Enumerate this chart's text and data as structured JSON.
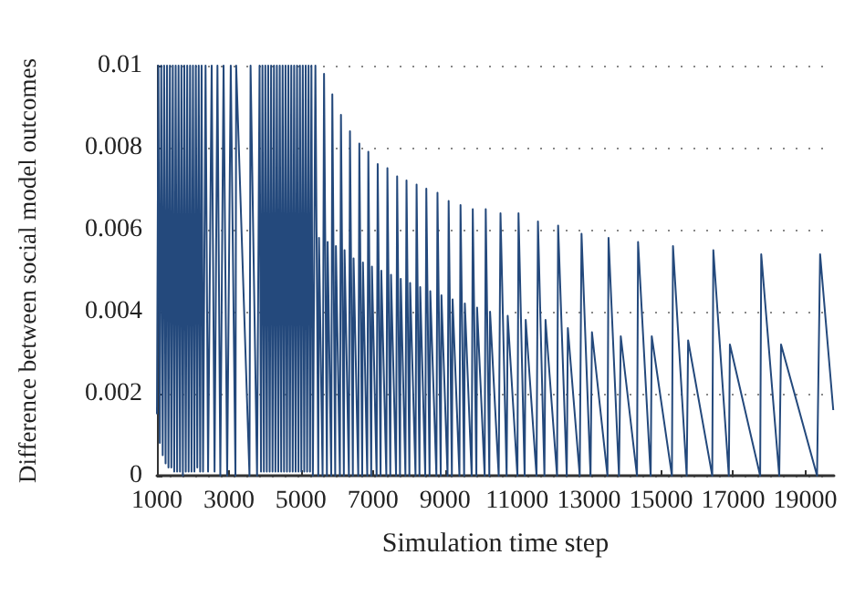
{
  "chart_data": {
    "type": "line",
    "xlabel": "Simulation time step",
    "ylabel": "Difference between social model outcomes",
    "xlim": [
      1000,
      19800
    ],
    "ylim": [
      0,
      0.01
    ],
    "xticks": [
      1000,
      3000,
      5000,
      7000,
      9000,
      11000,
      13000,
      15000,
      17000,
      19000
    ],
    "yticks": [
      0,
      0.002,
      0.004,
      0.006,
      0.008,
      0.01
    ],
    "grid": "y",
    "marker": "none",
    "series": [
      {
        "color": "#24497c",
        "line_style": "solid",
        "x": [
          1000,
          1040,
          1080,
          1120,
          1160,
          1200,
          1240,
          1280,
          1320,
          1360,
          1400,
          1440,
          1480,
          1520,
          1560,
          1600,
          1640,
          1680,
          1720,
          1760,
          1800,
          1840,
          1880,
          1920,
          1960,
          2000,
          2040,
          2080,
          2120,
          2160,
          2200,
          2240,
          2280,
          2350,
          2420,
          2520,
          2600,
          2680,
          2760,
          2850,
          2950,
          3050,
          3180,
          3200,
          3570,
          3600,
          3780,
          3850,
          3890,
          3930,
          3970,
          4010,
          4050,
          4090,
          4130,
          4170,
          4210,
          4250,
          4290,
          4330,
          4370,
          4410,
          4450,
          4490,
          4530,
          4570,
          4610,
          4650,
          4690,
          4730,
          4770,
          4810,
          4850,
          4890,
          4930,
          4970,
          5010,
          5050,
          5090,
          5130,
          5170,
          5210,
          5250,
          5290,
          5330,
          5400,
          5480,
          5500,
          5600,
          5640,
          5720,
          5740,
          5840,
          5870,
          5950,
          5970,
          6080,
          6110,
          6190,
          6210,
          6330,
          6360,
          6440,
          6460,
          6590,
          6620,
          6700,
          6720,
          6840,
          6870,
          6950,
          6970,
          7100,
          7130,
          7210,
          7230,
          7370,
          7400,
          7480,
          7500,
          7640,
          7670,
          7750,
          7770,
          7900,
          7930,
          8010,
          8030,
          8180,
          8210,
          8290,
          8310,
          8450,
          8480,
          8570,
          8590,
          8760,
          8790,
          8880,
          8900,
          9070,
          9100,
          9190,
          9210,
          9400,
          9430,
          9530,
          9550,
          9740,
          9770,
          9870,
          9890,
          10100,
          10130,
          10230,
          10250,
          10490,
          10540,
          10710,
          10740,
          11010,
          11040,
          11210,
          11240,
          11540,
          11580,
          11760,
          11790,
          12110,
          12140,
          12380,
          12410,
          12740,
          12790,
          13040,
          13080,
          13510,
          13540,
          13830,
          13880,
          14330,
          14360,
          14710,
          14740,
          15300,
          15330,
          15710,
          15750,
          16420,
          16450,
          16880,
          16910,
          17750,
          17780,
          18280,
          18330,
          19330,
          19415,
          19780
        ],
        "values": [
          0.0015,
          0.01,
          0.0008,
          0.01,
          0.0005,
          0.01,
          0.0003,
          0.01,
          0.0002,
          0.01,
          0.0002,
          0.01,
          0.0001,
          0.01,
          0.0001,
          0.01,
          0.0001,
          0.01,
          0,
          0.01,
          0.0001,
          0.01,
          0.0001,
          0.01,
          0.0001,
          0.01,
          0.0001,
          0.01,
          0.0002,
          0.01,
          0.0001,
          0.01,
          0.0001,
          0.01,
          0.0001,
          0.01,
          0.0001,
          0.01,
          0,
          0.01,
          0,
          0.01,
          0,
          0.01,
          0,
          0.01,
          0,
          0.01,
          0.0001,
          0.01,
          0.0001,
          0.01,
          0.0001,
          0.01,
          0.0001,
          0.01,
          0.0001,
          0.01,
          0.0001,
          0.01,
          0.0001,
          0.01,
          0.0001,
          0.01,
          0.0001,
          0.01,
          0.0001,
          0.01,
          0.0001,
          0.01,
          0.0001,
          0.01,
          0.0001,
          0.01,
          0.0001,
          0.01,
          0.0001,
          0.01,
          0.0001,
          0.01,
          0.0001,
          0.01,
          0.0001,
          0.01,
          0,
          0.01,
          0,
          0.0058,
          0,
          0.0098,
          0,
          0.0057,
          0,
          0.0093,
          0,
          0.0056,
          0,
          0.0088,
          0,
          0.0055,
          0,
          0.0084,
          0,
          0.0053,
          0,
          0.0081,
          0,
          0.0052,
          0,
          0.0079,
          0,
          0.0051,
          0,
          0.0076,
          0,
          0.005,
          0,
          0.0075,
          0,
          0.0049,
          0,
          0.0073,
          0,
          0.0048,
          0,
          0.0072,
          0,
          0.0047,
          0,
          0.0071,
          0,
          0.0046,
          0,
          0.007,
          0,
          0.0045,
          0,
          0.0069,
          0,
          0.0044,
          0,
          0.0067,
          0,
          0.0043,
          0,
          0.0066,
          0,
          0.0042,
          0,
          0.0065,
          0,
          0.0041,
          0,
          0.0065,
          0,
          0.004,
          0,
          0.0064,
          0,
          0.0039,
          0,
          0.0064,
          0,
          0.0038,
          0,
          0.0062,
          0,
          0.0038,
          0,
          0.0061,
          0,
          0.0036,
          0,
          0.0059,
          0,
          0.0035,
          0,
          0.0058,
          0,
          0.0034,
          0,
          0.0057,
          0,
          0.0034,
          0,
          0.0056,
          0,
          0.0033,
          0,
          0.0055,
          0,
          0.0032,
          0,
          0.0054,
          0,
          0.0032,
          0,
          0.0054,
          0.0016
        ]
      }
    ]
  }
}
